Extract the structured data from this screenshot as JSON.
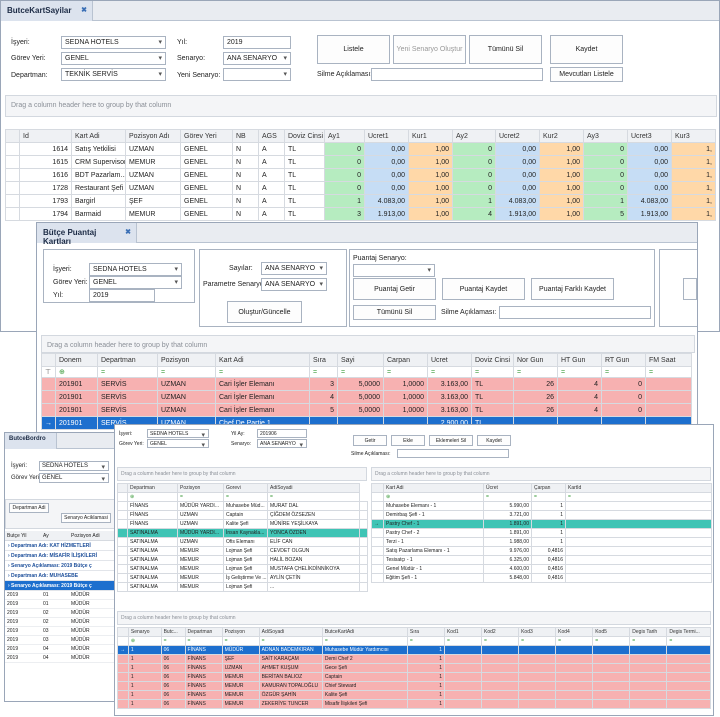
{
  "win1": {
    "tab": "ButceKartSayilar",
    "form": {
      "isyeri_label": "İşyeri:",
      "isyeri": "SEDNA HOTELS",
      "gorev_label": "Görev Yeri:",
      "gorev": "GENEL",
      "departman_label": "Departman:",
      "departman": "TEKNİK SERVİS",
      "yil_label": "Yıl:",
      "yil": "2019",
      "senaryo_label": "Senaryo:",
      "senaryo": "ANA SENARYO",
      "yeni_senaryo_label": "Yeni Senaryo:",
      "yeni_senaryo": "",
      "silme_label": "Silme Açıklaması:",
      "silme": ""
    },
    "buttons": {
      "listele": "Listele",
      "yeni_senaryo": "Yeni Senaryo Oluştur",
      "tumunu_sil": "Tümünü Sil",
      "kaydet": "Kaydet",
      "mevcutlari": "Mevcutları Listele"
    },
    "group_text": "Drag a column header here to group by that column",
    "columns": [
      "Id",
      "Kart Adi",
      "Pozisyon Adı",
      "Görev Yeri",
      "NB",
      "AGS",
      "Doviz Cinsi",
      "Ay1",
      "Ucret1",
      "Kur1",
      "Ay2",
      "Ucret2",
      "Kur2",
      "Ay3",
      "Ucret3",
      "Kur3"
    ],
    "rows": [
      [
        "1614",
        "Satış Yetkilisi",
        "UZMAN",
        "GENEL",
        "N",
        "A",
        "TL",
        "0",
        "0,00",
        "1,00",
        "0",
        "0,00",
        "1,00",
        "0",
        "0,00",
        "1,"
      ],
      [
        "1615",
        "CRM Supervisor",
        "MEMUR",
        "GENEL",
        "N",
        "A",
        "TL",
        "0",
        "0,00",
        "1,00",
        "0",
        "0,00",
        "1,00",
        "0",
        "0,00",
        "1,"
      ],
      [
        "1616",
        "BDT Pazarlam...",
        "UZMAN",
        "GENEL",
        "N",
        "A",
        "TL",
        "0",
        "0,00",
        "1,00",
        "0",
        "0,00",
        "1,00",
        "0",
        "0,00",
        "1,"
      ],
      [
        "1728",
        "Restaurant Şefi",
        "UZMAN",
        "GENEL",
        "N",
        "A",
        "TL",
        "0",
        "0,00",
        "1,00",
        "0",
        "0,00",
        "1,00",
        "0",
        "0,00",
        "1,"
      ],
      [
        "1793",
        "Bargirl",
        "ŞEF",
        "GENEL",
        "N",
        "A",
        "TL",
        "1",
        "4.083,00",
        "1,00",
        "1",
        "4.083,00",
        "1,00",
        "1",
        "4.083,00",
        "1,"
      ],
      [
        "1794",
        "Barmaid",
        "MEMUR",
        "GENEL",
        "N",
        "A",
        "TL",
        "3",
        "1.913,00",
        "1,00",
        "4",
        "1.913,00",
        "1,00",
        "5",
        "1.913,00",
        "1,"
      ]
    ]
  },
  "win2": {
    "tab": "Bütçe Puantaj Kartları",
    "form": {
      "isyeri_label": "İşyeri:",
      "isyeri": "SEDNA HOTELS",
      "gorev_label": "Görev Yeri:",
      "gorev": "GENEL",
      "yil_label": "Yıl:",
      "yil": "2019",
      "sayilar_label": "Sayılar:",
      "sayilar": "ANA SENARYO",
      "param_label": "Parametre Senaryo:",
      "param": "ANA SENARYO",
      "puantaj_label": "Puantaj Senaryo:",
      "puantaj": "",
      "silme_label": "Silme Açıklaması:",
      "silme": ""
    },
    "buttons": {
      "olustur": "Oluştur/Güncelle",
      "getir": "Puantaj Getir",
      "kaydet": "Puantaj Kaydet",
      "farkli": "Puantaj Farklı Kaydet",
      "sil": "Tümünü Sil"
    },
    "group_text": "Drag a column header here to group by that column",
    "columns": [
      "Donem",
      "Departman",
      "Pozisyon",
      "Kart Adi",
      "Sıra",
      "Sayi",
      "Carpan",
      "Ucret",
      "Doviz Cinsi",
      "Nor Gun",
      "HT Gun",
      "RT Gun",
      "FM Saat"
    ],
    "rows": [
      [
        "201901",
        "SERVİS",
        "UZMAN",
        "Cari İşler Elemanı",
        "3",
        "5,0000",
        "1,0000",
        "3.163,00",
        "TL",
        "26",
        "4",
        "0",
        ""
      ],
      [
        "201901",
        "SERVİS",
        "UZMAN",
        "Cari İşler Elemanı",
        "4",
        "5,0000",
        "1,0000",
        "3.163,00",
        "TL",
        "26",
        "4",
        "0",
        ""
      ],
      [
        "201901",
        "SERVİS",
        "UZMAN",
        "Cari İşler Elemanı",
        "5",
        "5,0000",
        "1,0000",
        "3.163,00",
        "TL",
        "26",
        "4",
        "0",
        ""
      ],
      [
        "201901",
        "SERVİS",
        "UZMAN",
        "Chef De Partie 1",
        "",
        "",
        "",
        "2.900,00",
        "TL",
        "",
        "",
        "",
        ""
      ]
    ]
  },
  "win3": {
    "tab": "ButceBordro",
    "form": {
      "isyeri_label": "İşyeri:",
      "isyeri": "SEDNA HOTELS",
      "gorev_label": "Görev Yeri:",
      "gorev": "GENEL"
    },
    "group_chips": [
      "Departman Adi",
      "Senaryo Aciklamasi"
    ],
    "columns": [
      "Butçe Yil",
      "Ay",
      "Pozisyon Adi"
    ],
    "groups": [
      "Departman Adı: KAT HİZMETLERİ",
      "Departman Adı: MİSAFİR İLİŞKİLERİ",
      "Senaryo Açıklaması: 2019 Bütçe ç",
      "Departman Adı: MUHASEBE",
      "Senaryo Açıklaması: 2019 Bütçe ç"
    ],
    "rows": [
      [
        "2019",
        "01",
        "MÜDÜR"
      ],
      [
        "2019",
        "01",
        "MÜDÜR"
      ],
      [
        "2019",
        "02",
        "MÜDÜR"
      ],
      [
        "2019",
        "02",
        "MÜDÜR"
      ],
      [
        "2019",
        "03",
        "MÜDÜR"
      ],
      [
        "2019",
        "03",
        "MÜDÜR"
      ],
      [
        "2019",
        "04",
        "MÜDÜR"
      ],
      [
        "2019",
        "04",
        "MÜDÜR"
      ]
    ]
  },
  "win4": {
    "form": {
      "isyeri_label": "İşyeri:",
      "isyeri": "SEDNA HOTELS",
      "gorev_label": "Görev Yeri:",
      "gorev": "GENEL",
      "yil_label": "Yil Ay:",
      "yil": "201906",
      "senaryo_label": "Senaryo:",
      "senaryo": "ANA SENARYO",
      "silme_label": "Silme Açıklaması:"
    },
    "buttons": {
      "getir": "Getir",
      "ekle": "Ekle",
      "eklemeleri_sil": "Eklemeleri Sil",
      "kaydet": "Kaydet"
    },
    "group_text": "Drag a column header here to group by that column",
    "left_cols": [
      "Departman",
      "Pozisyon",
      "Gorevi",
      "AdiSoyadi"
    ],
    "left_rows": [
      [
        "FİNANS",
        "MÜDÜR YARDI...",
        "Muhasebe Müd...",
        "MURAT DAL"
      ],
      [
        "FİNANS",
        "UZMAN",
        "Captain",
        "ÇİĞDEM ÖZSEZEN"
      ],
      [
        "FİNANS",
        "UZMAN",
        "Kalite Şefi",
        "MÜNİRE YEŞİLKAYA"
      ],
      [
        "SATINALMA",
        "MÜDÜR YARDI...",
        "İnsan Kaynakla...",
        "YONCA ÖZDEN"
      ],
      [
        "SATINALMA",
        "UZMAN",
        "Ofis Elemanı",
        "ELİF CAN"
      ],
      [
        "SATINALMA",
        "MEMUR",
        "Lojman Şefi",
        "CEVDET OLGUN"
      ],
      [
        "SATINALMA",
        "MEMUR",
        "Lojman Şefi",
        "HALİL BOZAN"
      ],
      [
        "SATINALMA",
        "MEMUR",
        "Lojman Şefi",
        "MUSTAFA ÇHELİKDİNNİKOYA"
      ],
      [
        "SATINALMA",
        "MEMUR",
        "İş Geliştirme Ve ...",
        "AYLİN ÇETİN"
      ],
      [
        "SATINALMA",
        "MEMUR",
        "Lojman Şefi",
        "..."
      ]
    ],
    "right_cols": [
      "Kart Adi",
      "Ücret",
      "Çarpan",
      "KartId"
    ],
    "right_rows": [
      [
        "Muhasebe Elemanı - 1",
        "5.990,00",
        "1",
        ""
      ],
      [
        "Demirbaş Şefi - 1",
        "3.721,00",
        "1",
        ""
      ],
      [
        "Pastry Chef - 1",
        "1.891,00",
        "1",
        ""
      ],
      [
        "Pastry Chef - 2",
        "1.891,00",
        "1",
        ""
      ],
      [
        "Terzi - 1",
        "1.988,00",
        "1",
        ""
      ],
      [
        "Satış Pazarlama Elemanı - 1",
        "9.976,00",
        "0,4816",
        ""
      ],
      [
        "Tesisatçı - 1",
        "6.325,00",
        "0,4816",
        ""
      ],
      [
        "Genel Müdür - 1",
        "4.600,00",
        "0,4816",
        ""
      ],
      [
        "Eğitim Şefi - 1",
        "5.848,00",
        "0,4816",
        ""
      ]
    ],
    "bottom_cols": [
      "Senaryo",
      "Butc...",
      "Departman",
      "Pozisyon",
      "AdiSoyadi",
      "ButceKartAdi",
      "Sıra",
      "Kod1",
      "Kod2",
      "Kod3",
      "Kod4",
      "Kod5",
      "Degis Tarih",
      "Degis Termi..."
    ],
    "bottom_rows": [
      [
        "1",
        "06",
        "FİNANS",
        "MÜDÜR",
        "ADNAN BADEMKIRAN",
        "Muhasebe Müdür Yardımcısı",
        "1"
      ],
      [
        "1",
        "06",
        "FİNANS",
        "ŞEF",
        "SAİT KARAÇAM",
        "Demi Chef 2",
        "1"
      ],
      [
        "1",
        "06",
        "FİNANS",
        "UZMAN",
        "AHMET KUŞUM",
        "Gece Şefi",
        "1"
      ],
      [
        "1",
        "06",
        "FİNANS",
        "MEMUR",
        "BERİTAN BALIOZ",
        "Captain",
        "1"
      ],
      [
        "1",
        "06",
        "FİNANS",
        "MEMUR",
        "KAMURAN TOPALOĞLU",
        "Chief Steward",
        "1"
      ],
      [
        "1",
        "06",
        "FİNANS",
        "MEMUR",
        "ÖZGÜR ŞAHİN",
        "Kalite Şefi",
        "1"
      ],
      [
        "1",
        "06",
        "FİNANS",
        "MEMUR",
        "ZEKERİYE TUNCER",
        "Misafir İlişkileri Şefi",
        "1"
      ]
    ]
  },
  "colors": {
    "green": "#b6ecc0",
    "blue": "#c6ddf5",
    "orange": "#ffd8a8",
    "pink": "#f7b1b1",
    "selected": "#1d6fce",
    "teal": "#3fc4b5"
  }
}
